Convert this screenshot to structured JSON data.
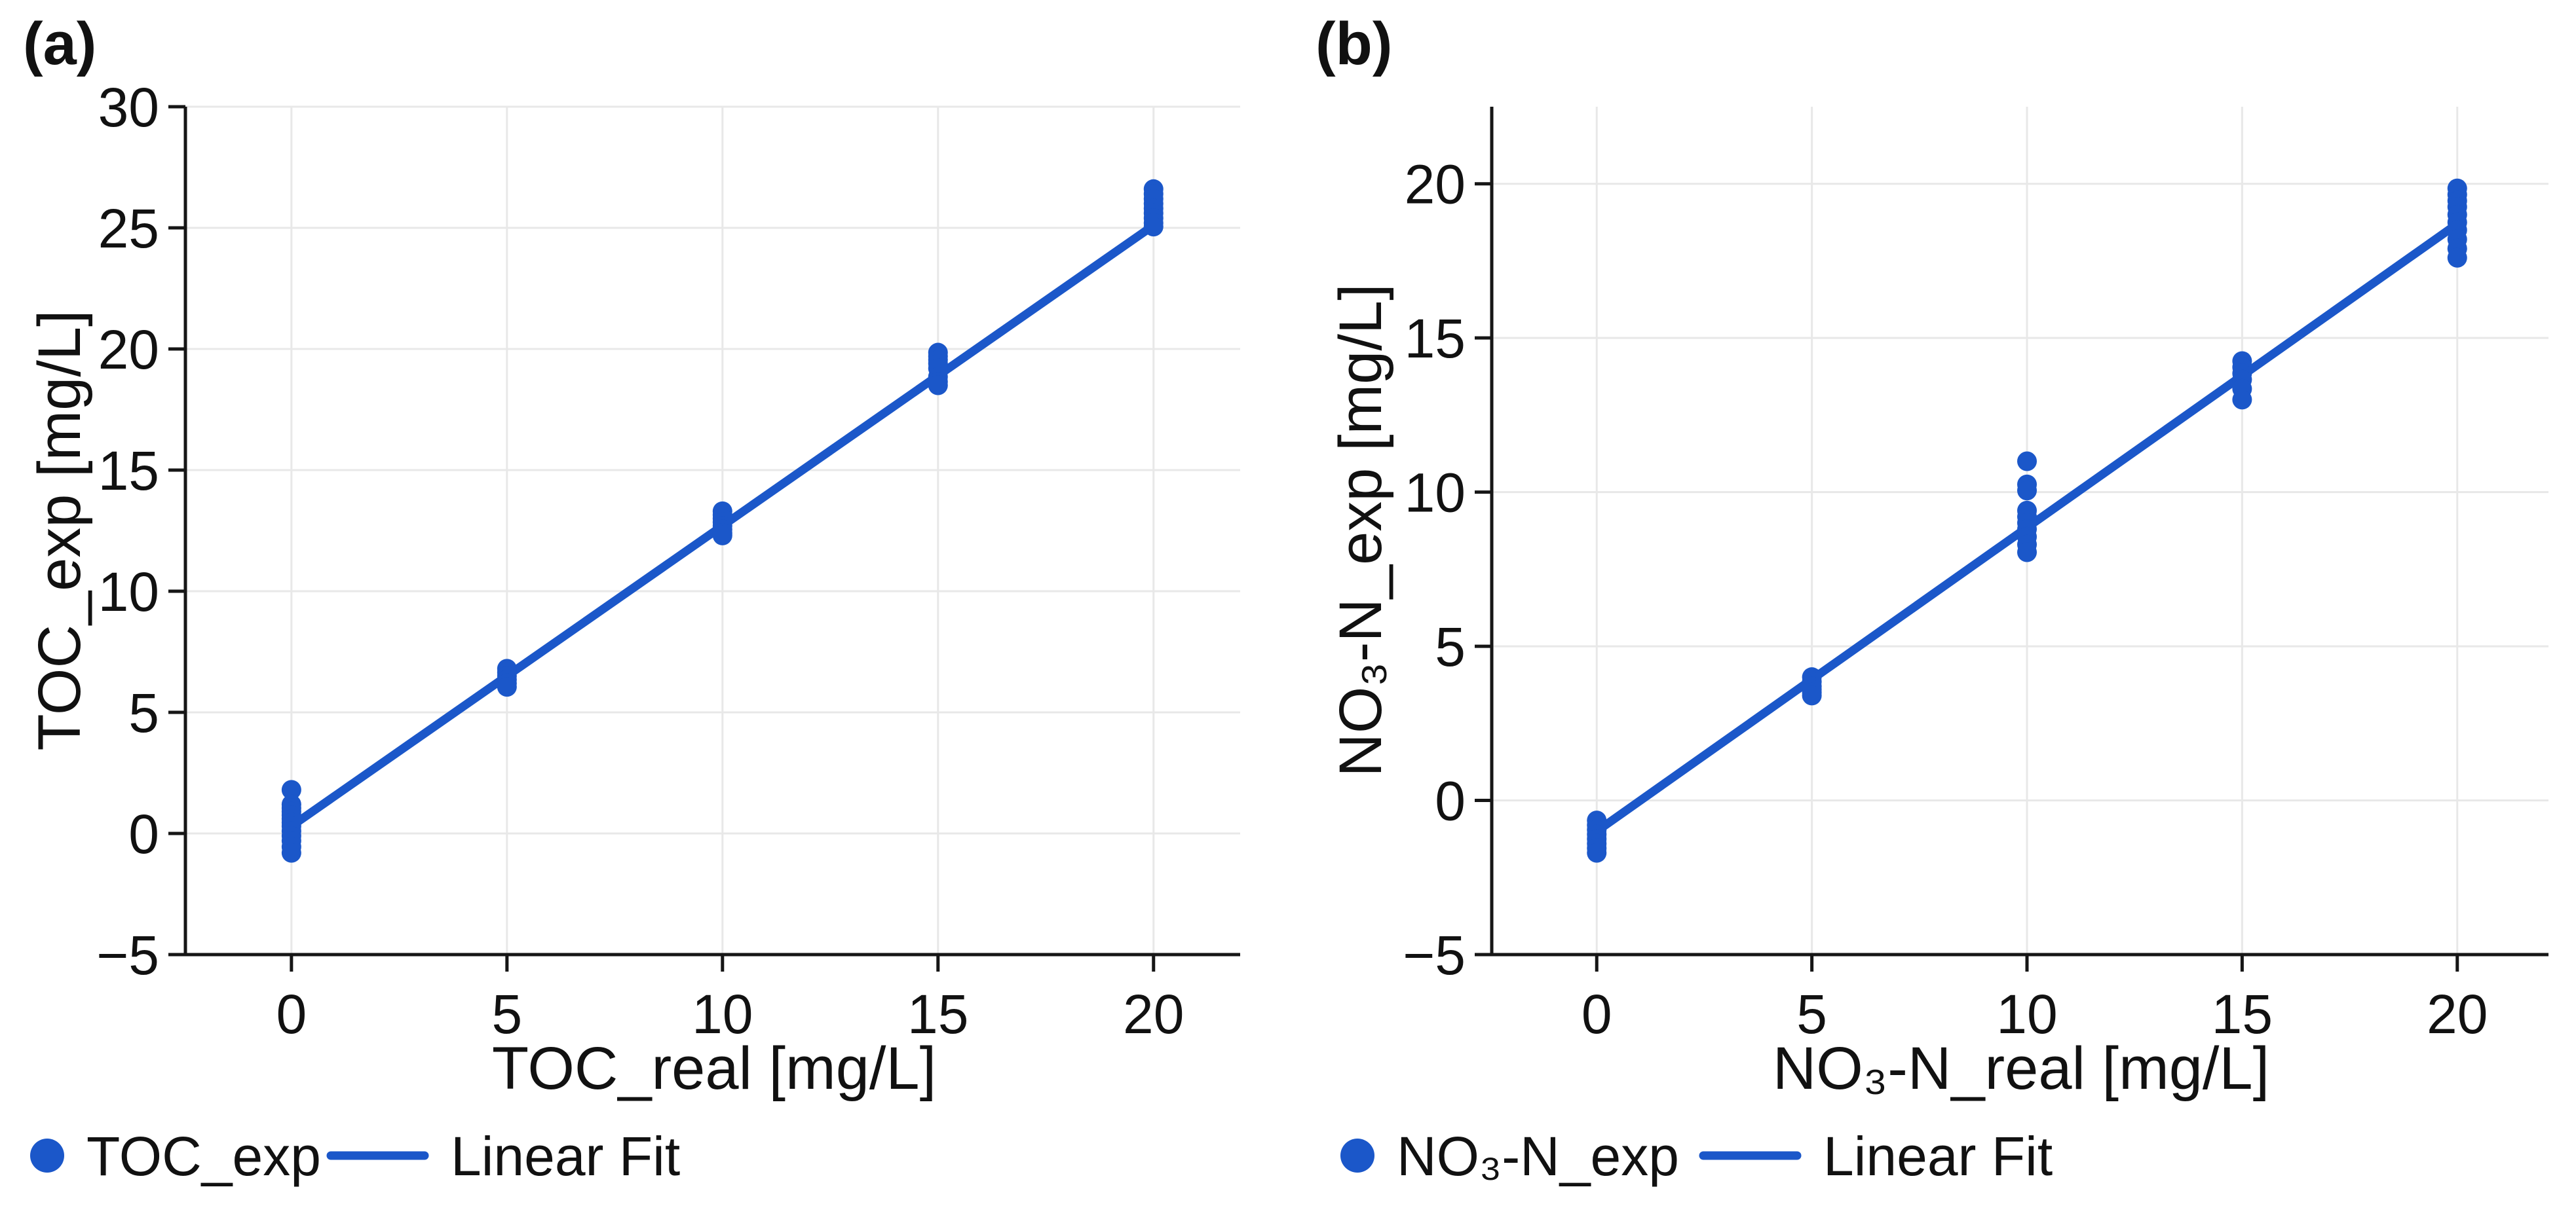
{
  "figure": {
    "background": "#ffffff",
    "accent_blue": "#1b57c9",
    "grid_color": "#e8e8e8",
    "axis_color": "#161616",
    "text_color": "#111111"
  },
  "chart_data": [
    {
      "id": "a",
      "panel_label": "(a)",
      "type": "scatter",
      "title": "",
      "xlabel": "TOC_real [mg/L]",
      "ylabel": "TOC_exp [mg/L]",
      "xlim": [
        -2.46,
        22.01
      ],
      "ylim": [
        -5,
        30
      ],
      "x_ticks": [
        0,
        5,
        10,
        15,
        20
      ],
      "y_ticks": [
        30,
        25,
        20,
        15,
        10,
        5,
        0,
        -5
      ],
      "grid": true,
      "legend_position": "below-left",
      "series": [
        {
          "name": "TOC_exp",
          "type": "scatter",
          "marker": "circle",
          "points": [
            [
              0,
              1.8
            ],
            [
              0,
              1.2
            ],
            [
              0,
              1.05
            ],
            [
              0,
              0.9
            ],
            [
              0,
              0.75
            ],
            [
              0,
              0.6
            ],
            [
              0,
              0.45
            ],
            [
              0,
              0.3
            ],
            [
              0,
              0.1
            ],
            [
              0,
              -0.1
            ],
            [
              0,
              -0.3
            ],
            [
              0,
              -0.55
            ],
            [
              0,
              -0.8
            ],
            [
              5,
              6.8
            ],
            [
              5,
              6.65
            ],
            [
              5,
              6.5
            ],
            [
              5,
              6.35
            ],
            [
              5,
              6.2
            ],
            [
              5,
              6.05
            ],
            [
              10,
              13.3
            ],
            [
              10,
              13.15
            ],
            [
              10,
              13.0
            ],
            [
              10,
              12.85
            ],
            [
              10,
              12.7
            ],
            [
              10,
              12.55
            ],
            [
              10,
              12.4
            ],
            [
              10,
              12.3
            ],
            [
              15,
              19.85
            ],
            [
              15,
              19.7
            ],
            [
              15,
              19.55
            ],
            [
              15,
              19.4
            ],
            [
              15,
              19.2
            ],
            [
              15,
              18.85
            ],
            [
              15,
              18.65
            ],
            [
              15,
              18.5
            ],
            [
              20,
              26.6
            ],
            [
              20,
              26.4
            ],
            [
              20,
              26.2
            ],
            [
              20,
              26.0
            ],
            [
              20,
              25.8
            ],
            [
              20,
              25.6
            ],
            [
              20,
              25.4
            ],
            [
              20,
              25.2
            ],
            [
              20,
              25.05
            ]
          ]
        },
        {
          "name": "Linear Fit",
          "type": "line",
          "points": [
            [
              0,
              0.3
            ],
            [
              20,
              25.1
            ]
          ]
        }
      ]
    },
    {
      "id": "b",
      "panel_label": "(b)",
      "type": "scatter",
      "title": "",
      "xlabel": "NO₃-N_real [mg/L]",
      "ylabel": "NO₃-N_exp [mg/L]",
      "xlim": [
        -2.44,
        22.12
      ],
      "ylim": [
        -5,
        22.5
      ],
      "x_ticks": [
        0,
        5,
        10,
        15,
        20
      ],
      "y_ticks": [
        20,
        15,
        10,
        5,
        0,
        -5
      ],
      "grid": true,
      "legend_position": "below-left",
      "series": [
        {
          "name": "NO₃-N_exp",
          "type": "scatter",
          "marker": "circle",
          "points": [
            [
              0,
              -0.65
            ],
            [
              0,
              -0.8
            ],
            [
              0,
              -0.95
            ],
            [
              0,
              -1.1
            ],
            [
              0,
              -1.25
            ],
            [
              0,
              -1.4
            ],
            [
              0,
              -1.55
            ],
            [
              0,
              -1.7
            ],
            [
              5,
              4.0
            ],
            [
              5,
              3.85
            ],
            [
              5,
              3.7
            ],
            [
              5,
              3.6
            ],
            [
              5,
              3.5
            ],
            [
              5,
              3.4
            ],
            [
              10,
              11.0
            ],
            [
              10,
              10.25
            ],
            [
              10,
              10.05
            ],
            [
              10,
              9.4
            ],
            [
              10,
              9.2
            ],
            [
              10,
              9.0
            ],
            [
              10,
              8.8
            ],
            [
              10,
              8.55
            ],
            [
              10,
              8.3
            ],
            [
              10,
              8.05
            ],
            [
              15,
              14.25
            ],
            [
              15,
              14.05
            ],
            [
              15,
              13.85
            ],
            [
              15,
              13.65
            ],
            [
              15,
              13.35
            ],
            [
              15,
              13.0
            ],
            [
              20,
              19.85
            ],
            [
              20,
              19.65
            ],
            [
              20,
              19.45
            ],
            [
              20,
              19.25
            ],
            [
              20,
              19.0
            ],
            [
              20,
              18.75
            ],
            [
              20,
              18.5
            ],
            [
              20,
              18.2
            ],
            [
              20,
              17.9
            ],
            [
              20,
              17.6
            ]
          ]
        },
        {
          "name": "Linear Fit",
          "type": "line",
          "points": [
            [
              0,
              -1.0
            ],
            [
              20,
              18.7
            ]
          ]
        }
      ]
    }
  ]
}
